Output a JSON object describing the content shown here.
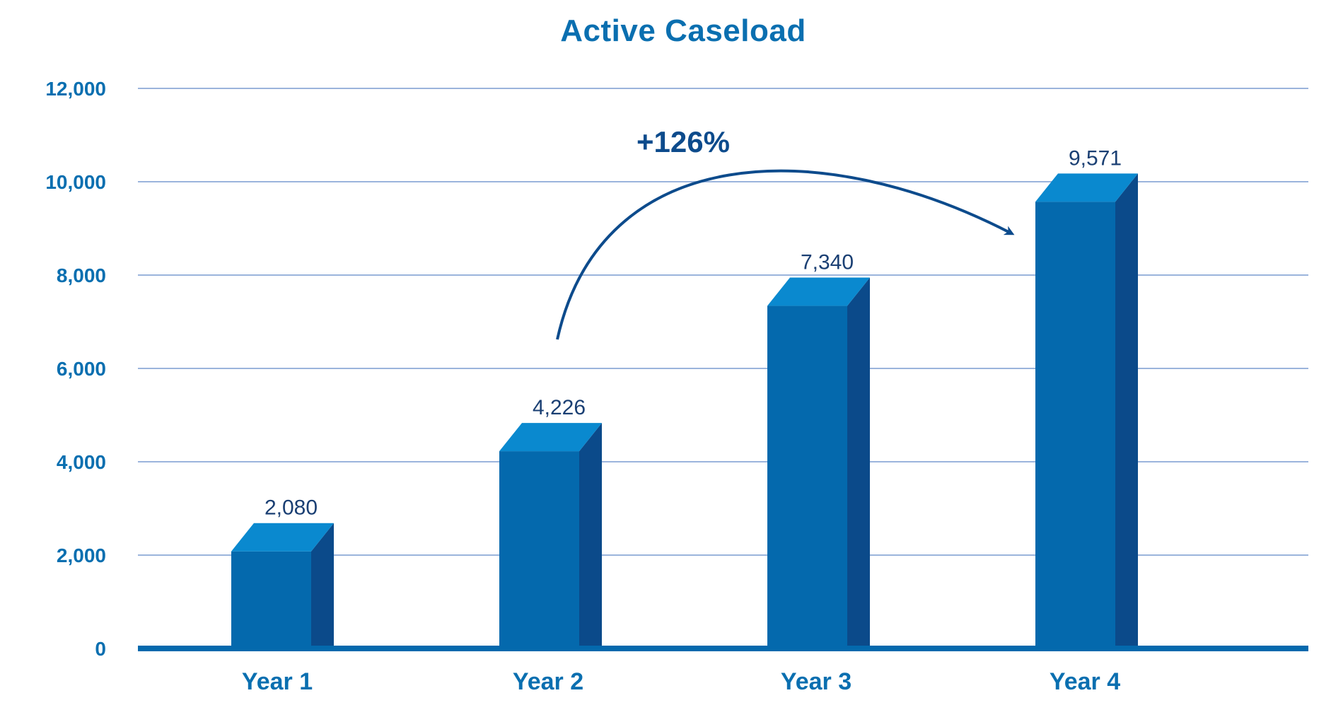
{
  "chart_data": {
    "type": "bar",
    "title": "Active Caseload",
    "xlabel": "",
    "ylabel": "",
    "categories": [
      "Year 1",
      "Year 2",
      "Year 3",
      "Year 4"
    ],
    "values": [
      2080,
      4226,
      7340,
      9571
    ],
    "data_labels": [
      "2,080",
      "4,226",
      "7,340",
      "9,571"
    ],
    "ylim": [
      0,
      12000
    ],
    "yticks": [
      0,
      2000,
      4000,
      6000,
      8000,
      10000,
      12000
    ],
    "ytick_labels": [
      "0",
      "2,000",
      "4,000",
      "6,000",
      "8,000",
      "10,000",
      "12,000"
    ],
    "grid": true,
    "legend": "none",
    "style": "3d-bars",
    "annotation": {
      "text": "+126%",
      "from_category": "Year 2",
      "to_category": "Year 4",
      "kind": "curved-arrow"
    },
    "colors": {
      "title": "#0a6fb0",
      "axis_text": "#0a6fb0",
      "data_label": "#1a3f73",
      "annotation": "#0d4b8c",
      "bar_front": "#0469ad",
      "bar_top": "#0a89cf",
      "bar_side": "#0b4a8a",
      "grid": "#9bb4dc",
      "baseline": "#0469ad"
    }
  }
}
